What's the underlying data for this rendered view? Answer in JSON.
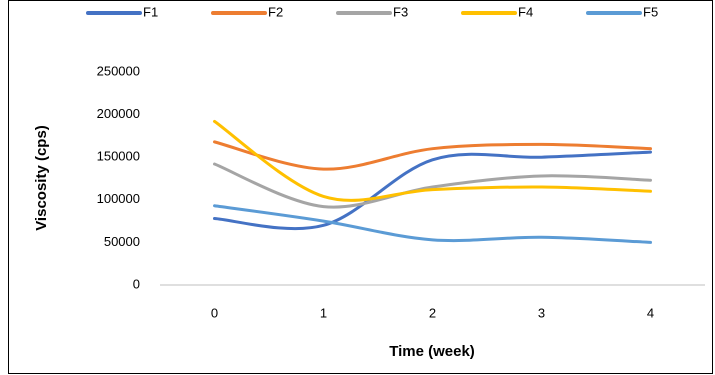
{
  "chart_data": {
    "type": "line",
    "x_label": "Time (week)",
    "y_label": "Viscosity (cps)",
    "categories": [
      "0",
      "1",
      "2",
      "3",
      "4"
    ],
    "series": [
      {
        "name": "F1",
        "color": "#4472c4",
        "values": [
          78000,
          70000,
          147000,
          150000,
          156000
        ]
      },
      {
        "name": "F2",
        "color": "#ed7d31",
        "values": [
          168000,
          136000,
          160000,
          165000,
          160000
        ]
      },
      {
        "name": "F3",
        "color": "#a5a5a5",
        "values": [
          142000,
          92000,
          115000,
          128000,
          123000
        ]
      },
      {
        "name": "F4",
        "color": "#ffc000",
        "values": [
          192000,
          104000,
          112000,
          115000,
          110000
        ]
      },
      {
        "name": "F5",
        "color": "#5b9bd5",
        "values": [
          93000,
          75000,
          53000,
          56000,
          50000
        ]
      }
    ],
    "ylim": [
      0,
      250000
    ],
    "yticks": [
      0,
      50000,
      100000,
      150000,
      200000,
      250000
    ],
    "legend": "top",
    "grid": false,
    "smooth": true
  }
}
